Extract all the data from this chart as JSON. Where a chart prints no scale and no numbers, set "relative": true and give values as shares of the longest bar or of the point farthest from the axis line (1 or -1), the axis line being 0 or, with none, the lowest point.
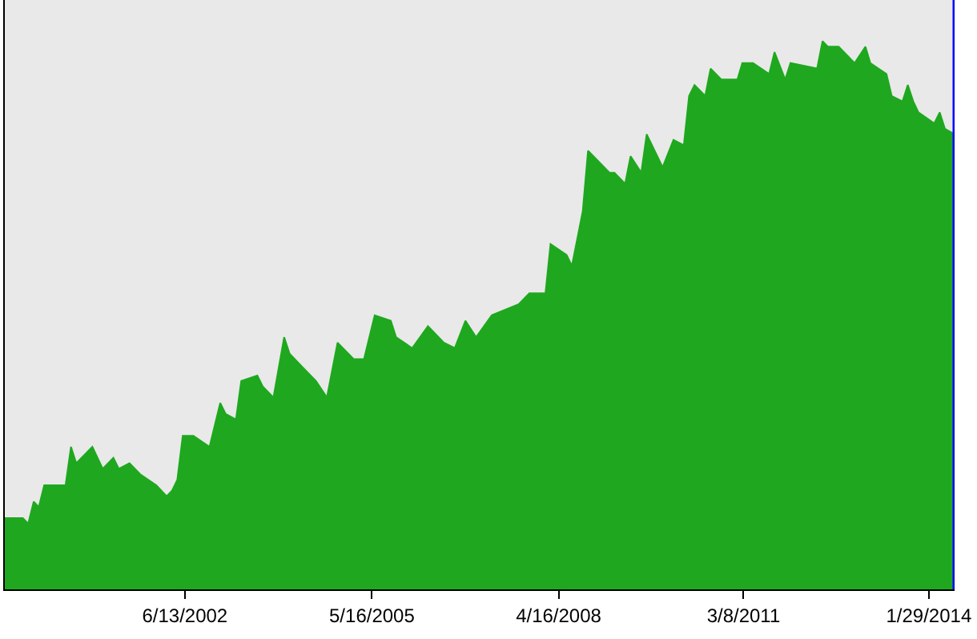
{
  "chart_data": {
    "type": "area",
    "relative": true,
    "color": "#1fa81f",
    "xlim": [
      "1999-08-20",
      "2014-06-25"
    ],
    "xticks": [
      {
        "value": "2002-06-13",
        "label": "6/13/2002"
      },
      {
        "value": "2005-05-16",
        "label": "5/16/2005"
      },
      {
        "value": "2008-04-16",
        "label": "4/16/2008"
      },
      {
        "value": "2011-03-08",
        "label": "3/8/2011"
      },
      {
        "value": "2014-01-29",
        "label": "1/29/2014"
      }
    ],
    "x": [
      "1999-08-20",
      "1999-12",
      "2000-01",
      "2000-02",
      "2000-03",
      "2000-04",
      "2000-08",
      "2000-09",
      "2000-10",
      "2001-01",
      "2001-03",
      "2001-05",
      "2001-06",
      "2001-08",
      "2001-10",
      "2002-01",
      "2002-03",
      "2002-04",
      "2002-05",
      "2002-06",
      "2002-08",
      "2002-11",
      "2003-01",
      "2003-02",
      "2003-04",
      "2003-05",
      "2003-08",
      "2003-09",
      "2003-11",
      "2004-01",
      "2004-02",
      "2004-05",
      "2004-07",
      "2004-09",
      "2004-11",
      "2005-02",
      "2005-04",
      "2005-06",
      "2005-09",
      "2005-10",
      "2006-01",
      "2006-04",
      "2006-07",
      "2006-09",
      "2006-11",
      "2007-01",
      "2007-04",
      "2007-09",
      "2007-11",
      "2008-02",
      "2008-03",
      "2008-06",
      "2008-07",
      "2008-08",
      "2008-09",
      "2008-10",
      "2009-02",
      "2009-03",
      "2009-05",
      "2009-06",
      "2009-08",
      "2009-09",
      "2009-11",
      "2009-12",
      "2010-02",
      "2010-04",
      "2010-05",
      "2010-06",
      "2010-08",
      "2010-09",
      "2010-11",
      "2011-02",
      "2011-03",
      "2011-05",
      "2011-08",
      "2011-09",
      "2011-11",
      "2011-12",
      "2012-05",
      "2012-06",
      "2012-07",
      "2012-09",
      "2012-12",
      "2013-02",
      "2013-03",
      "2013-06",
      "2013-07",
      "2013-09",
      "2013-10",
      "2013-11",
      "2013-12",
      "2014-03",
      "2014-04",
      "2014-05",
      "2014-06-25"
    ],
    "values": [
      0.13,
      0.13,
      0.12,
      0.16,
      0.15,
      0.19,
      0.19,
      0.26,
      0.23,
      0.26,
      0.22,
      0.24,
      0.22,
      0.23,
      0.21,
      0.19,
      0.17,
      0.18,
      0.2,
      0.28,
      0.28,
      0.26,
      0.34,
      0.32,
      0.31,
      0.38,
      0.39,
      0.37,
      0.35,
      0.46,
      0.43,
      0.4,
      0.38,
      0.35,
      0.45,
      0.42,
      0.42,
      0.5,
      0.49,
      0.46,
      0.44,
      0.48,
      0.45,
      0.44,
      0.49,
      0.46,
      0.5,
      0.52,
      0.54,
      0.54,
      0.63,
      0.61,
      0.59,
      0.64,
      0.69,
      0.8,
      0.76,
      0.76,
      0.74,
      0.79,
      0.76,
      0.83,
      0.79,
      0.77,
      0.82,
      0.81,
      0.9,
      0.92,
      0.9,
      0.95,
      0.93,
      0.93,
      0.96,
      0.96,
      0.94,
      0.98,
      0.93,
      0.96,
      0.95,
      1.0,
      0.99,
      0.99,
      0.96,
      0.99,
      0.96,
      0.94,
      0.9,
      0.89,
      0.92,
      0.89,
      0.87,
      0.85,
      0.87,
      0.84,
      0.83
    ],
    "ref_lines": [
      {
        "axis": "x",
        "value": "2014-06-25",
        "color": "#0000ff"
      }
    ]
  }
}
